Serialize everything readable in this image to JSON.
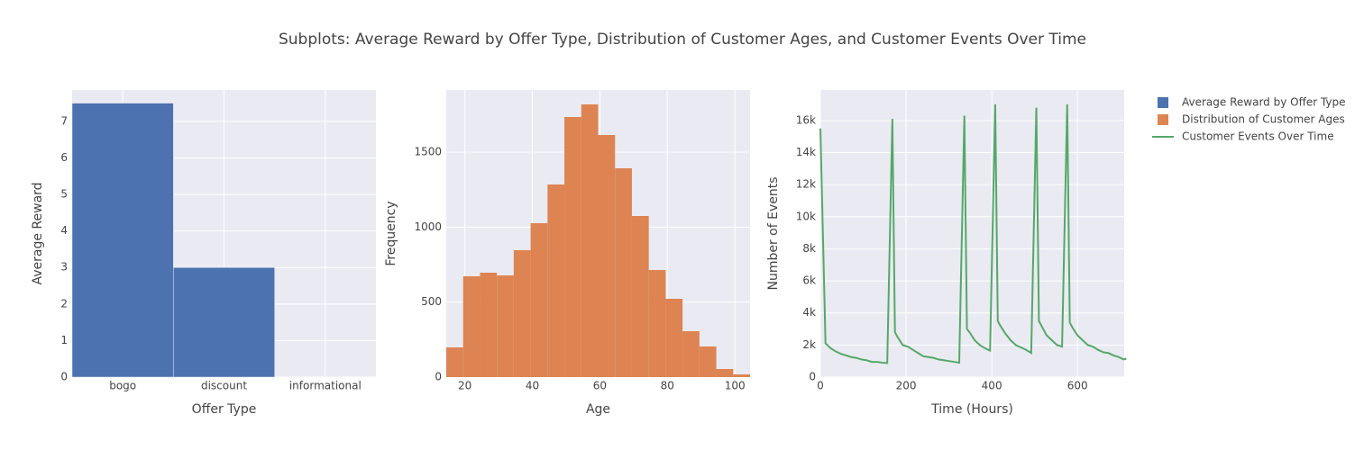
{
  "title": "Subplots: Average Reward by Offer Type, Distribution of Customer Ages, and Customer Events Over Time",
  "chart_data": [
    {
      "type": "bar",
      "name": "Average Reward by Offer Type",
      "color": "#4c72b0",
      "categories": [
        "bogo",
        "discount",
        "informational"
      ],
      "values": [
        7.5,
        3.0,
        0
      ],
      "ylim": [
        0,
        7.86
      ],
      "yticks": [
        0,
        1,
        2,
        3,
        4,
        5,
        6,
        7
      ],
      "x_label": "Offer Type",
      "y_label": "Average Reward",
      "grid": true
    },
    {
      "type": "histogram",
      "name": "Distribution of Customer Ages",
      "color": "#dd8452",
      "bins": [
        14.5,
        19.5,
        24.5,
        29.5,
        34.5,
        39.5,
        44.5,
        49.5,
        54.5,
        59.5,
        64.5,
        69.5,
        74.5,
        79.5,
        84.5,
        89.5,
        94.5,
        99.5,
        104.5
      ],
      "values": [
        198,
        672,
        696,
        678,
        846,
        1026,
        1284,
        1734,
        1818,
        1614,
        1392,
        1074,
        714,
        522,
        306,
        204,
        54,
        18
      ],
      "xlim": [
        14.5,
        104.5
      ],
      "xticks": [
        20,
        40,
        60,
        80,
        100
      ],
      "ylim": [
        0,
        1914
      ],
      "yticks": [
        0,
        500,
        1000,
        1500
      ],
      "x_label": "Age",
      "y_label": "Frequency",
      "grid": true
    },
    {
      "type": "line",
      "name": "Customer Events Over Time",
      "color": "#55a868",
      "x": [
        0,
        12,
        24,
        36,
        48,
        60,
        72,
        84,
        96,
        108,
        120,
        132,
        144,
        156,
        168,
        174,
        180,
        192,
        204,
        216,
        228,
        240,
        252,
        264,
        276,
        288,
        300,
        312,
        324,
        336,
        342,
        348,
        360,
        372,
        384,
        396,
        408,
        414,
        420,
        432,
        444,
        456,
        468,
        480,
        492,
        504,
        510,
        516,
        528,
        540,
        552,
        564,
        576,
        582,
        588,
        600,
        612,
        624,
        636,
        648,
        660,
        672,
        684,
        696,
        708,
        714
      ],
      "values": [
        15500,
        2100,
        1800,
        1600,
        1450,
        1350,
        1250,
        1200,
        1100,
        1050,
        950,
        950,
        900,
        880,
        16100,
        2800,
        2500,
        2000,
        1900,
        1700,
        1500,
        1300,
        1250,
        1200,
        1100,
        1050,
        1000,
        950,
        900,
        16300,
        3000,
        2800,
        2300,
        2000,
        1800,
        1650,
        17000,
        3500,
        3200,
        2700,
        2300,
        2000,
        1850,
        1700,
        1500,
        16800,
        3500,
        3200,
        2600,
        2300,
        2000,
        1900,
        17000,
        3400,
        3100,
        2600,
        2300,
        2000,
        1900,
        1700,
        1550,
        1500,
        1350,
        1250,
        1100,
        1150
      ],
      "xlim": [
        0,
        709
      ],
      "xticks": [
        0,
        200,
        400,
        600
      ],
      "ylim": [
        0,
        17900
      ],
      "yticks": [
        0,
        {
          "value": 2000,
          "label": "2k"
        },
        {
          "value": 4000,
          "label": "4k"
        },
        {
          "value": 6000,
          "label": "6k"
        },
        {
          "value": 8000,
          "label": "8k"
        },
        {
          "value": 10000,
          "label": "10k"
        },
        {
          "value": 12000,
          "label": "12k"
        },
        {
          "value": 14000,
          "label": "14k"
        },
        {
          "value": 16000,
          "label": "16k"
        }
      ],
      "x_label": "Time (Hours)",
      "y_label": "Number of Events",
      "grid": true
    }
  ]
}
